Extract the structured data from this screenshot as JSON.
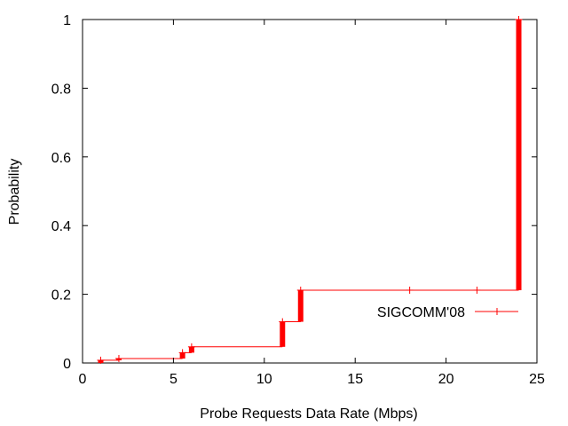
{
  "chart_data": {
    "type": "line",
    "title": "",
    "xlabel": "Probe Requests Data Rate (Mbps)",
    "ylabel": "Probability",
    "xlim": [
      0,
      25
    ],
    "ylim": [
      0,
      1
    ],
    "x_ticks": [
      0,
      5,
      10,
      15,
      20,
      25
    ],
    "y_ticks": [
      0,
      0.2,
      0.4,
      0.6,
      0.8,
      1
    ],
    "x_tick_labels": [
      "0",
      "5",
      "10",
      "15",
      "20",
      "25"
    ],
    "y_tick_labels": [
      "0",
      "0.2",
      "0.4",
      "0.6",
      "0.8",
      "1"
    ],
    "grid": false,
    "legend_position": "right",
    "series": [
      {
        "name": "SIGCOMM'08",
        "color": "#ff0000",
        "style": "step-cdf",
        "points": [
          {
            "x": 1,
            "y_low": 0.0,
            "y_high": 0.008
          },
          {
            "x": 2,
            "y_low": 0.008,
            "y_high": 0.013
          },
          {
            "x": 5.5,
            "y_low": 0.013,
            "y_high": 0.03
          },
          {
            "x": 6,
            "y_low": 0.03,
            "y_high": 0.047
          },
          {
            "x": 11,
            "y_low": 0.047,
            "y_high": 0.12
          },
          {
            "x": 12,
            "y_low": 0.12,
            "y_high": 0.212
          },
          {
            "x": 24,
            "y_low": 0.212,
            "y_high": 1.0
          }
        ],
        "markers_x": [
          1,
          2,
          5.5,
          6,
          11,
          12,
          18,
          21.7,
          24
        ]
      }
    ]
  }
}
